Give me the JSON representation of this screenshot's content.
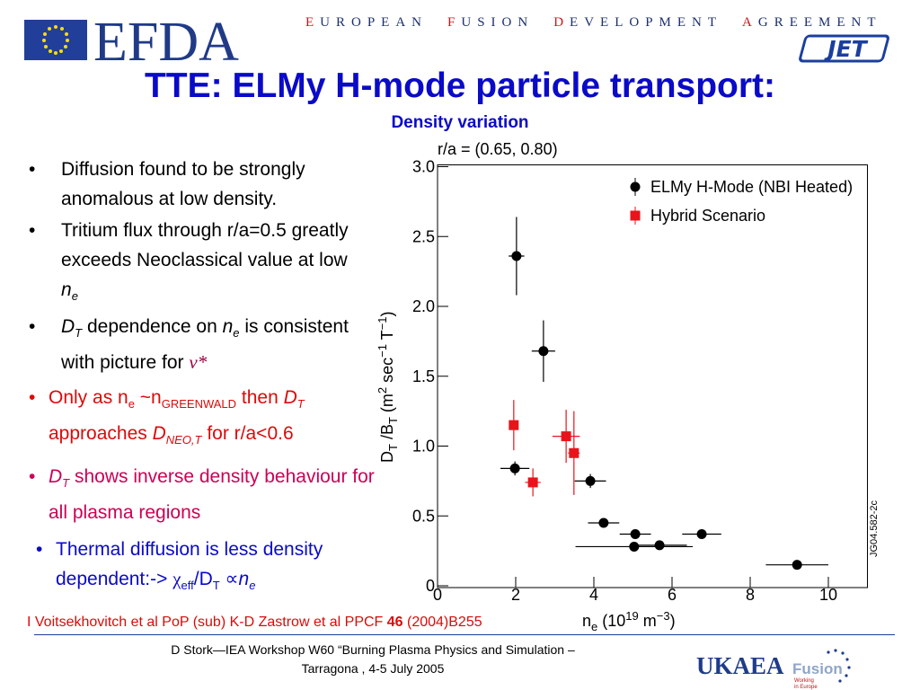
{
  "header": {
    "logo": "EFDA",
    "agreement": [
      "EUROPEAN",
      "FUSION",
      "DEVELOPMENT",
      "AGREEMENT"
    ],
    "jet": "JET"
  },
  "title": "TTE: ELMy H-mode particle transport:",
  "subtitle": "Density variation",
  "bullets": [
    [
      "Diffusion found to be strongly anomalous at low density."
    ],
    [
      "Tritium flux through r/a=0.5 greatly exceeds Neoclassical value at low ",
      "n",
      "e"
    ],
    [
      "D",
      "T",
      " dependence on ",
      "n",
      "e",
      " is consistent with picture for ",
      "ν*"
    ],
    [
      "Only as n",
      "e",
      " ~n",
      "GREENWALD",
      " then ",
      "D",
      "T",
      " approaches ",
      "D",
      "NEO,T",
      " for r/a<0.6"
    ],
    [
      "D",
      "T",
      " shows inverse density behaviour for all plasma regions"
    ],
    [
      "Thermal diffusion is less density dependent:-> ",
      "χ",
      "eff",
      "/D",
      "T",
      " ∝",
      "n",
      "e"
    ]
  ],
  "reference": [
    "I Voitsekhovitch et al PoP (sub)",
    "K-D Zastrow et al PPCF ",
    "46",
    " (2004)B255"
  ],
  "footer": [
    "D Stork—IEA Workshop W60 “Burning Plasma Physics and Simulation –",
    "Tarragona , 4-5 July 2005"
  ],
  "footer_logo": {
    "name": "UKAEA",
    "fusion": "Fusion",
    "tagline": [
      "Working",
      "in Europe"
    ]
  },
  "chart_data": {
    "type": "scatter",
    "annotation": "r/a = (0.65, 0.80)",
    "figure_id": "JG04.582-2c",
    "xlabel": [
      "n",
      "e",
      " (10",
      "19",
      " m",
      "−3",
      ")"
    ],
    "ylabel": [
      "D",
      "T",
      " /B",
      "T",
      " (m",
      "2",
      " sec",
      "−1",
      " T",
      "−1",
      ")"
    ],
    "xlim": [
      0,
      11
    ],
    "ylim": [
      0,
      3
    ],
    "xticks": [
      0,
      2,
      4,
      6,
      8,
      10
    ],
    "yticks": [
      0,
      0.5,
      {
        "value": 1,
        "label": "1.0"
      },
      1.5,
      {
        "value": 2,
        "label": "2.0"
      },
      2.5,
      {
        "value": 3,
        "label": "3.0"
      }
    ],
    "legend": "upper right",
    "series": [
      {
        "name": "ELMy H-Mode (NBI Heated)",
        "color": "#000000",
        "marker": "circle",
        "x": [
          2.02,
          2.71,
          1.98,
          3.91,
          4.25,
          5.06,
          5.03,
          5.68,
          6.76,
          9.2
        ],
        "values": [
          2.36,
          1.68,
          0.84,
          0.75,
          0.45,
          0.37,
          0.28,
          0.29,
          0.37,
          0.15
        ],
        "x_err": [
          0.2,
          0.3,
          0.37,
          0.4,
          0.4,
          0.4,
          1.5,
          0.7,
          0.5,
          0.8
        ],
        "y_err": [
          0.28,
          0.22,
          0.05,
          0.05,
          0.02,
          0.02,
          0.02,
          0.02,
          0.02,
          0.02
        ]
      },
      {
        "name": "Hybrid Scenario",
        "color": "#e8141b",
        "marker": "square",
        "x": [
          1.95,
          2.44,
          3.29,
          3.49
        ],
        "values": [
          1.15,
          0.74,
          1.07,
          0.95
        ],
        "x_err": [
          0.1,
          0.2,
          0.35,
          0.15
        ],
        "y_err": [
          0.18,
          0.1,
          0.19,
          0.3
        ]
      }
    ]
  }
}
